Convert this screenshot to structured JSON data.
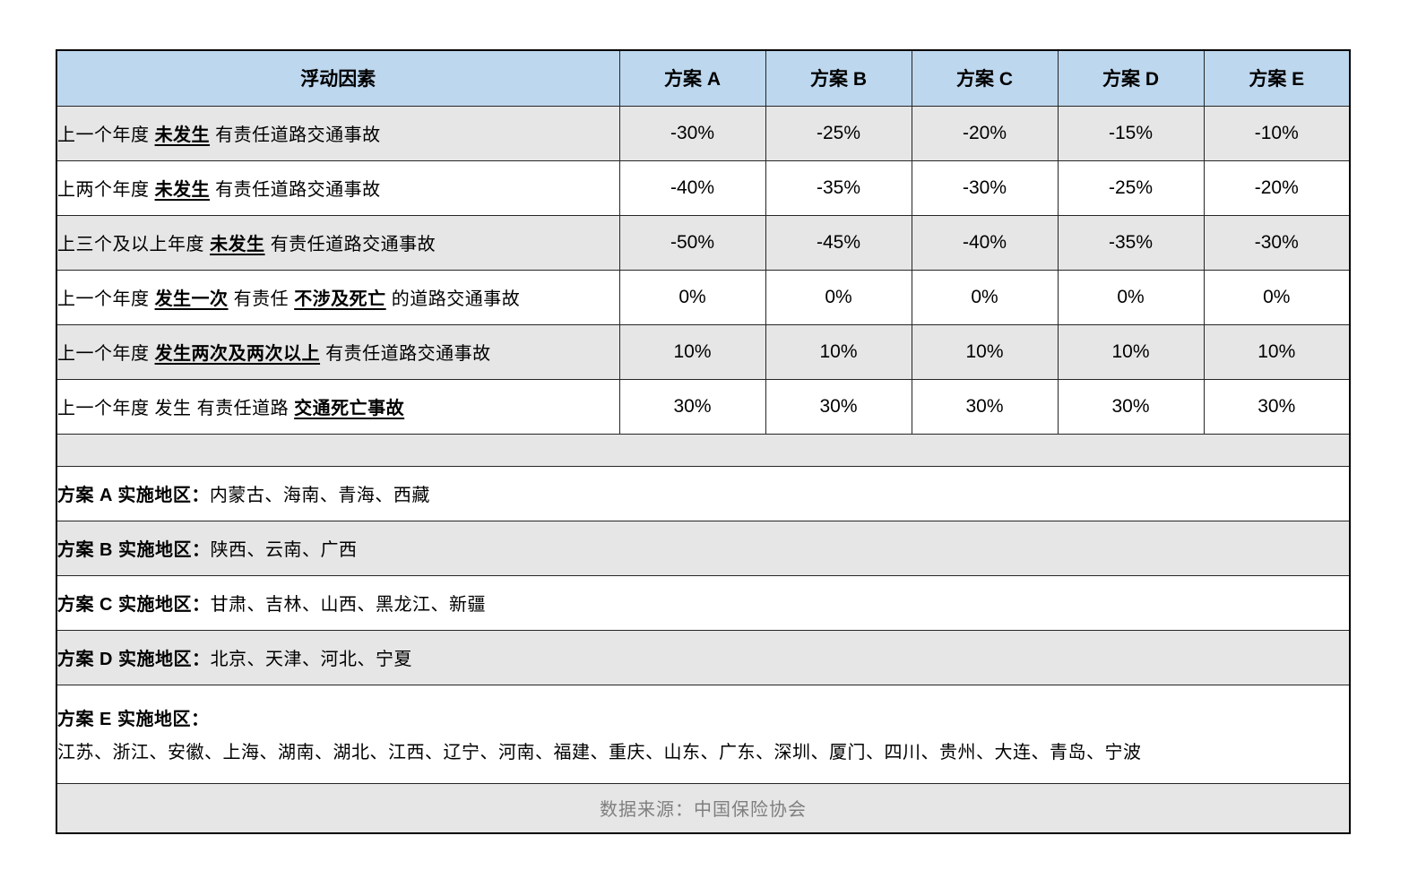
{
  "colors": {
    "header_bg": "#BDD7EE",
    "alt_row_bg": "#E7E6E6",
    "border": "#262626",
    "source_text": "#7F7F7F"
  },
  "table": {
    "header": {
      "factor_label": "浮动因素",
      "plans": [
        "方案 A",
        "方案 B",
        "方案 C",
        "方案 D",
        "方案 E"
      ]
    },
    "factor_rows": [
      {
        "parts": [
          {
            "text": "上一个年度 "
          },
          {
            "text": "未发生",
            "emph": true
          },
          {
            "text": " 有责任道路交通事故"
          }
        ],
        "values": [
          "-30%",
          "-25%",
          "-20%",
          "-15%",
          "-10%"
        ]
      },
      {
        "parts": [
          {
            "text": "上两个年度 "
          },
          {
            "text": "未发生",
            "emph": true
          },
          {
            "text": " 有责任道路交通事故"
          }
        ],
        "values": [
          "-40%",
          "-35%",
          "-30%",
          "-25%",
          "-20%"
        ]
      },
      {
        "parts": [
          {
            "text": "上三个及以上年度 "
          },
          {
            "text": "未发生",
            "emph": true
          },
          {
            "text": " 有责任道路交通事故"
          }
        ],
        "values": [
          "-50%",
          "-45%",
          "-40%",
          "-35%",
          "-30%"
        ]
      },
      {
        "parts": [
          {
            "text": "上一个年度 "
          },
          {
            "text": "发生一次",
            "emph": true
          },
          {
            "text": " 有责任 "
          },
          {
            "text": "不涉及死亡",
            "emph": true
          },
          {
            "text": " 的道路交通事故"
          }
        ],
        "values": [
          "0%",
          "0%",
          "0%",
          "0%",
          "0%"
        ]
      },
      {
        "parts": [
          {
            "text": "上一个年度 "
          },
          {
            "text": "发生两次及两次以上",
            "emph": true
          },
          {
            "text": " 有责任道路交通事故"
          }
        ],
        "values": [
          "10%",
          "10%",
          "10%",
          "10%",
          "10%"
        ]
      },
      {
        "parts": [
          {
            "text": "上一个年度 发生 有责任道路 "
          },
          {
            "text": "交通死亡事故",
            "emph": true
          }
        ],
        "values": [
          "30%",
          "30%",
          "30%",
          "30%",
          "30%"
        ]
      }
    ],
    "region_rows": [
      {
        "label": "方案 A 实施地区：",
        "text": "内蒙古、海南、青海、西藏"
      },
      {
        "label": "方案 B 实施地区：",
        "text": "陕西、云南、广西"
      },
      {
        "label": "方案 C 实施地区：",
        "text": "甘肃、吉林、山西、黑龙江、新疆"
      },
      {
        "label": "方案 D 实施地区：",
        "text": "北京、天津、河北、宁夏"
      },
      {
        "label": "方案 E 实施地区：",
        "text": "江苏、浙江、安徽、上海、湖南、湖北、江西、辽宁、河南、福建、重庆、山东、广东、深圳、厦门、四川、贵州、大连、青岛、宁波",
        "two_line": true
      }
    ],
    "source": "数据来源：中国保险协会"
  }
}
